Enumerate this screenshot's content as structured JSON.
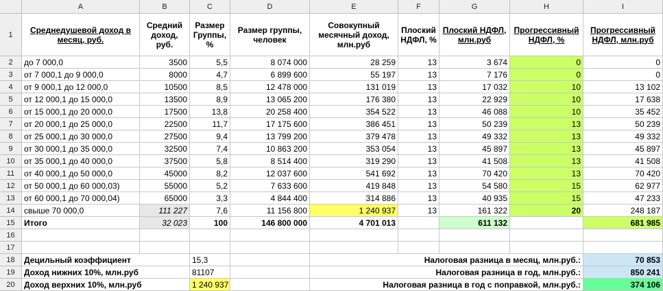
{
  "columns": [
    "A",
    "B",
    "C",
    "D",
    "E",
    "F",
    "G",
    "H",
    "I"
  ],
  "rows": [
    "1",
    "2",
    "3",
    "4",
    "5",
    "6",
    "7",
    "8",
    "9",
    "10",
    "11",
    "12",
    "13",
    "14",
    "15",
    "16",
    "17",
    "18",
    "19",
    "20"
  ],
  "colors": {
    "yellow": "#ffff66",
    "green": "#ccff66",
    "light_green": "#ccffcc",
    "blue": "#cce6f5",
    "teal": "#66ff99",
    "gray": "#e8e8e8"
  },
  "header": {
    "A": "Среднедушевой доход в месяц, руб.",
    "B": "Средний доход, руб.",
    "C": "Размер Группы, %",
    "D": "Размер группы, человек",
    "E": "Совокупный месячный доход, млн.руб",
    "F": "Плоский НДФЛ, %",
    "G": "Плоский НДФЛ, млн.руб",
    "H": "Прогрессивный НДФЛ, %",
    "I": "Прогрессивный НДФЛ, млн.руб"
  },
  "data_rows": [
    [
      "до 7 000,0",
      "3500",
      "5,5",
      "8 074 000",
      "28 259",
      "13",
      "3 674",
      "0",
      "0"
    ],
    [
      "от 7 000,1 до 9 000,0",
      "8000",
      "4,7",
      "6 899 600",
      "55 197",
      "13",
      "7 176",
      "0",
      "0"
    ],
    [
      "от 9 000,1 до 12 000,0",
      "10500",
      "8,5",
      "12 478 000",
      "131 019",
      "13",
      "17 032",
      "10",
      "13 102"
    ],
    [
      "от 12 000,1 до 15 000,0",
      "13500",
      "8,9",
      "13 065 200",
      "176 380",
      "13",
      "22 929",
      "10",
      "17 638"
    ],
    [
      "от 15 000,1 до 20 000,0",
      "17500",
      "13,8",
      "20 258 400",
      "354 522",
      "13",
      "46 088",
      "10",
      "35 452"
    ],
    [
      "от 20 000,1 до 25 000,0",
      "22500",
      "11,7",
      "17 175 600",
      "386 451",
      "13",
      "50 239",
      "13",
      "50 239"
    ],
    [
      "от 25 000,1 до 30 000,0",
      "27500",
      "9,4",
      "13 799 200",
      "379 478",
      "13",
      "49 332",
      "13",
      "49 332"
    ],
    [
      "от 30 000,1 до 35 000,0",
      "32500",
      "7,4",
      "10 863 200",
      "353 054",
      "13",
      "45 897",
      "13",
      "45 897"
    ],
    [
      "от 35 000,1 до 40 000,0",
      "37500",
      "5,8",
      "8 514 400",
      "319 290",
      "13",
      "41 508",
      "13",
      "41 508"
    ],
    [
      "от 40 000,1 до 50 000,0",
      "45000",
      "8,2",
      "12 037 600",
      "541 692",
      "13",
      "70 420",
      "13",
      "70 420"
    ],
    [
      "от 50 000,1 до 60 000,03)",
      "55000",
      "5,2",
      "7 633 600",
      "419 848",
      "13",
      "54 580",
      "15",
      "62 977"
    ],
    [
      "от 60 000,1 до 70 000,04)",
      "65000",
      "3,3",
      "4 844 400",
      "314 886",
      "13",
      "40 935",
      "15",
      "47 233"
    ],
    [
      "свыше 70 000,0",
      "111 227",
      "7,6",
      "11 156 800",
      "1 240 937",
      "13",
      "161 322",
      "20",
      "248 187"
    ],
    [
      "Итого",
      "32 023",
      "100",
      "146 800 000",
      "4 701 013",
      "",
      "611 132",
      "",
      "681 985"
    ]
  ],
  "summary": {
    "r18_label": "Децильный коэффициент",
    "r18_value": "15,3",
    "r19_label": "Доход нижних 10%, млн.руб",
    "r19_value": "81107",
    "r20_label": "Доход верхних 10%, млн.руб",
    "r20_value": "1 240 937",
    "tax_month_label": "Налоговая разница в месяц, млн.руб.:",
    "tax_month_value": "70 853",
    "tax_year_label": "Налоговая разница в год, млн.руб.:",
    "tax_year_value": "850 241",
    "tax_year_adj_label": "Налоговая разница в год с поправкой, млн.руб.:",
    "tax_year_adj_value": "374 106"
  }
}
